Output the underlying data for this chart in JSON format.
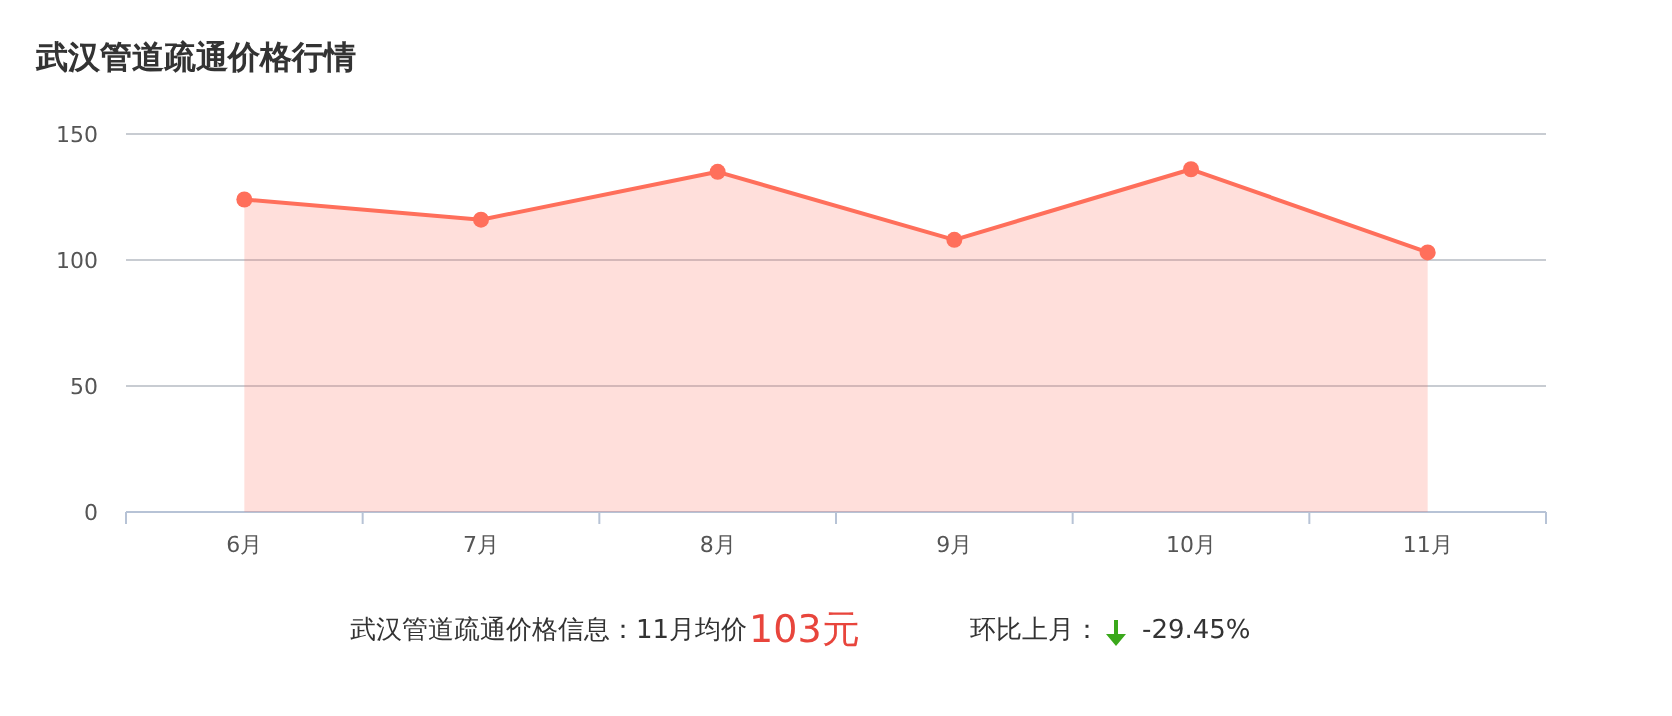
{
  "chart_data": {
    "type": "area",
    "title": "武汉管道疏通价格行情",
    "categories": [
      "6月",
      "7月",
      "8月",
      "9月",
      "10月",
      "11月"
    ],
    "series": [
      {
        "color": "#ff6f5b",
        "values": [
          124,
          116,
          135,
          108,
          136,
          103
        ]
      }
    ],
    "ylim": [
      0,
      150
    ],
    "yticks": [
      0,
      50,
      100,
      150
    ],
    "grid": "y",
    "marker": "circle",
    "line_style": "solid",
    "annotations": [
      "武汉管道疏通价格信息：11月均价",
      "103元",
      "环比上月：",
      "-29.45%"
    ]
  }
}
